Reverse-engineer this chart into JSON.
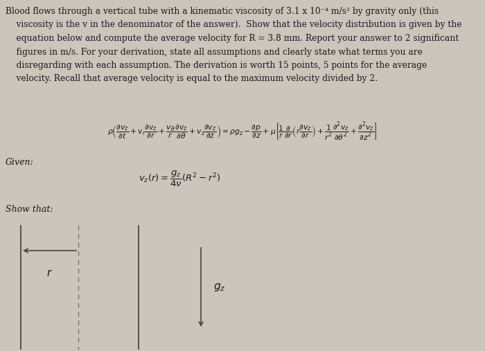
{
  "background_color": "#ccc5bb",
  "text_color": "#1a1a1a",
  "title_lines": [
    "Blood flows through a vertical tube with a kinematic viscosity of 3.1 x 10⁻⁴ m/s² by gravity only (this",
    "    viscosity is the v in the denominator of the answer).  Show that the velocity distribution is given by the",
    "    equation below and compute the average velocity for R = 3.8 mm. Report your answer to 2 significant",
    "    figures in m/s. For your derivation, state all assumptions and clearly state what terms you are",
    "    disregarding with each assumption. The derivation is worth 15 points, 5 points for the average",
    "    velocity. Recall that average velocity is equal to the maximum velocity divided by 2."
  ],
  "given_label": "Given:",
  "show_that_label": "Show that:",
  "equation_main": "$\\rho\\left(\\dfrac{\\partial v_z}{\\partial t} + v_r\\dfrac{\\partial v_z}{\\partial r} + \\dfrac{v_\\theta}{r}\\dfrac{\\partial v_z}{\\partial \\theta} + v_z\\dfrac{\\partial v_z}{\\partial z}\\right) = \\rho g_z - \\dfrac{\\partial p}{\\partial z} + \\mu\\left[\\dfrac{1}{r}\\dfrac{\\partial}{\\partial r}\\left(r\\dfrac{\\partial v_z}{\\partial r}\\right) + \\dfrac{1}{r^2}\\dfrac{\\partial^2 v_z}{\\partial \\theta^2} + \\dfrac{\\partial^2 v_z}{\\partial z^2}\\right]$",
  "equation_given": "$v_z(r) = \\dfrac{g_z}{4\\nu}(R^2 - r^2)$",
  "line_color": "#555555",
  "dash_color": "#777777",
  "arrow_color": "#444444"
}
